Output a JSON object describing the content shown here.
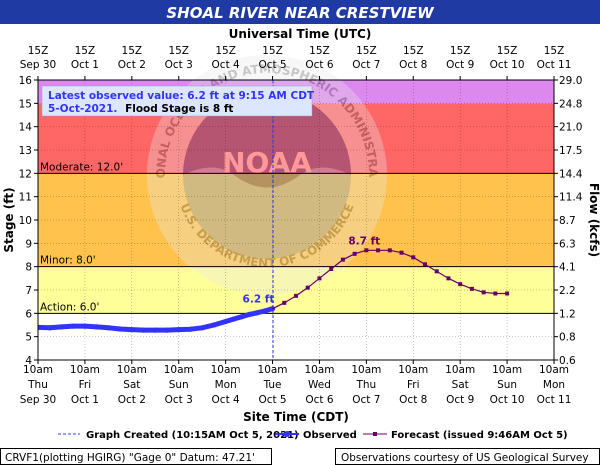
{
  "chart_data": {
    "type": "line",
    "title": "SHOAL RIVER NEAR CRESTVIEW",
    "top_axis_label": "Universal Time (UTC)",
    "bottom_axis_label": "Site Time (CDT)",
    "ylabel_left": "Stage (ft)",
    "ylabel_right": "Flow (kcfs)",
    "ylim": [
      4,
      16
    ],
    "xlim_hours": [
      0,
      264
    ],
    "x_hours_note": "hours after 10am CDT Sep 30",
    "y_ticks": [
      4,
      5,
      6,
      7,
      8,
      9,
      10,
      11,
      12,
      13,
      14,
      15,
      16
    ],
    "utc_ticks": [
      {
        "time": "15Z",
        "date": "Sep 30"
      },
      {
        "time": "15Z",
        "date": "Oct 1"
      },
      {
        "time": "15Z",
        "date": "Oct 2"
      },
      {
        "time": "15Z",
        "date": "Oct 3"
      },
      {
        "time": "15Z",
        "date": "Oct 4"
      },
      {
        "time": "15Z",
        "date": "Oct 5"
      },
      {
        "time": "15Z",
        "date": "Oct 6"
      },
      {
        "time": "15Z",
        "date": "Oct 7"
      },
      {
        "time": "15Z",
        "date": "Oct 8"
      },
      {
        "time": "15Z",
        "date": "Oct 9"
      },
      {
        "time": "15Z",
        "date": "Oct 10"
      },
      {
        "time": "15Z",
        "date": "Oct 11"
      }
    ],
    "cdt_ticks": [
      {
        "time": "10am",
        "day": "Thu",
        "date": "Sep 30"
      },
      {
        "time": "10am",
        "day": "Fri",
        "date": "Oct 1"
      },
      {
        "time": "10am",
        "day": "Sat",
        "date": "Oct 2"
      },
      {
        "time": "10am",
        "day": "Sun",
        "date": "Oct 3"
      },
      {
        "time": "10am",
        "day": "Mon",
        "date": "Oct 4"
      },
      {
        "time": "10am",
        "day": "Tue",
        "date": "Oct 5"
      },
      {
        "time": "10am",
        "day": "Wed",
        "date": "Oct 6"
      },
      {
        "time": "10am",
        "day": "Thu",
        "date": "Oct 7"
      },
      {
        "time": "10am",
        "day": "Fri",
        "date": "Oct 8"
      },
      {
        "time": "10am",
        "day": "Sat",
        "date": "Oct 9"
      },
      {
        "time": "10am",
        "day": "Sun",
        "date": "Oct 10"
      },
      {
        "time": "10am",
        "day": "Mon",
        "date": "Oct 11"
      }
    ],
    "flow_ticks": [
      {
        "stage": 16,
        "flow": "29.0"
      },
      {
        "stage": 15,
        "flow": "24.8"
      },
      {
        "stage": 14,
        "flow": "21.0"
      },
      {
        "stage": 13,
        "flow": "17.5"
      },
      {
        "stage": 12,
        "flow": "14.4"
      },
      {
        "stage": 11,
        "flow": "11.4"
      },
      {
        "stage": 10,
        "flow": "8.7"
      },
      {
        "stage": 9,
        "flow": "6.3"
      },
      {
        "stage": 8,
        "flow": "4.1"
      },
      {
        "stage": 7,
        "flow": "2.2"
      },
      {
        "stage": 6,
        "flow": "1.2"
      },
      {
        "stage": 5,
        "flow": "0.8"
      },
      {
        "stage": 4,
        "flow": "0.6"
      }
    ],
    "flood_categories": [
      {
        "name": "action",
        "label": "Action: 6.0'",
        "from": 6,
        "to": 8,
        "color": "#ffff99"
      },
      {
        "name": "minor",
        "label": "Minor: 8.0'",
        "from": 8,
        "to": 12,
        "color": "#ffc34d"
      },
      {
        "name": "moderate",
        "label": "Moderate: 12.0'",
        "from": 12,
        "to": 15,
        "color": "#ff6666"
      },
      {
        "name": "major",
        "label": "",
        "from": 15,
        "to": 16,
        "color": "#dd88ee"
      }
    ],
    "graph_created_hour": 120.25,
    "annotation": {
      "line1": "Latest observed value: 6.2 ft at 9:15 AM CDT",
      "line2": "5-Oct-2021.",
      "line2_suffix": "Flood Stage is 8 ft"
    },
    "series": [
      {
        "name": "Observed",
        "color": "#3333ff",
        "x": [
          0,
          6,
          12,
          18,
          24,
          30,
          36,
          42,
          48,
          54,
          60,
          66,
          72,
          78,
          84,
          90,
          96,
          100,
          104,
          108,
          112,
          116,
          120
        ],
        "y": [
          5.4,
          5.38,
          5.42,
          5.45,
          5.45,
          5.42,
          5.38,
          5.33,
          5.3,
          5.28,
          5.28,
          5.28,
          5.3,
          5.32,
          5.38,
          5.5,
          5.65,
          5.75,
          5.85,
          5.95,
          6.02,
          6.1,
          6.2
        ]
      },
      {
        "name": "Forecast",
        "color": "#660066",
        "x": [
          120,
          126,
          132,
          138,
          144,
          150,
          156,
          162,
          168,
          174,
          180,
          186,
          192,
          198,
          204,
          210,
          216,
          222,
          228,
          234,
          240
        ],
        "y": [
          6.2,
          6.45,
          6.75,
          7.1,
          7.5,
          7.9,
          8.3,
          8.55,
          8.7,
          8.7,
          8.7,
          8.6,
          8.4,
          8.1,
          7.8,
          7.5,
          7.25,
          7.05,
          6.9,
          6.85,
          6.85
        ]
      }
    ],
    "peak_label": "8.7 ft",
    "latest_label": "6.2 ft"
  },
  "legend": {
    "graph_created": "Graph Created (10:15AM Oct 5, 2021)",
    "observed": "Observed",
    "forecast": "Forecast (issued 9:46AM Oct 5)"
  },
  "footer": {
    "left": "CRVF1(plotting HGIRG) \"Gage 0\" Datum: 47.21'",
    "right": "Observations courtesy of US Geological Survey"
  },
  "watermark": {
    "center_text": "NOAA",
    "ring_text": "NATIONAL OCEANIC AND ATMOSPHERIC ADMINISTRATION",
    "ring_text_bottom": "U.S. DEPARTMENT OF COMMERCE"
  },
  "colors": {
    "title_bar": "#1f3aa3",
    "observed": "#3333ff",
    "forecast": "#660066"
  }
}
